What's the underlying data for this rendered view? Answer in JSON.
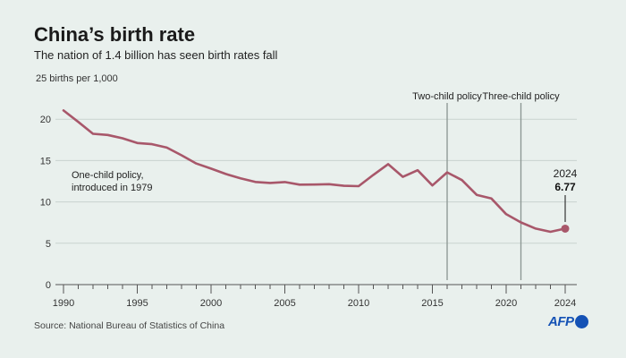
{
  "title": "China’s birth rate",
  "subtitle": "The nation of 1.4 billion has seen birth rates fall",
  "source": "Source: National Bureau of Statistics of China",
  "logo": "AFP",
  "chart_data": {
    "type": "line",
    "ylabel": "25 births per 1,000",
    "ylim": [
      0,
      25
    ],
    "yticks": [
      "0",
      "5",
      "10",
      "15",
      "20"
    ],
    "xlim": [
      1990,
      2024
    ],
    "xticks": [
      "1990",
      "1995",
      "2000",
      "2005",
      "2010",
      "2015",
      "2020",
      "2024"
    ],
    "grid": true,
    "line_color": "#a8576a",
    "x": [
      1990,
      1991,
      1992,
      1993,
      1994,
      1995,
      1996,
      1997,
      1998,
      1999,
      2000,
      2001,
      2002,
      2003,
      2004,
      2005,
      2006,
      2007,
      2008,
      2009,
      2010,
      2011,
      2012,
      2013,
      2014,
      2015,
      2016,
      2017,
      2018,
      2019,
      2020,
      2021,
      2022,
      2023,
      2024
    ],
    "values": [
      21.06,
      19.68,
      18.24,
      18.09,
      17.7,
      17.12,
      16.98,
      16.57,
      15.64,
      14.64,
      14.03,
      13.38,
      12.86,
      12.41,
      12.29,
      12.4,
      12.09,
      12.1,
      12.14,
      11.95,
      11.9,
      13.27,
      14.57,
      13.03,
      13.83,
      11.99,
      13.57,
      12.64,
      10.86,
      10.41,
      8.52,
      7.52,
      6.77,
      6.39,
      6.77
    ],
    "annotations": [
      {
        "text": "One-child policy,",
        "text2": "introduced in 1979"
      },
      {
        "text": "Two-child policy",
        "x": 2016
      },
      {
        "text": "Three-child policy",
        "x": 2021
      },
      {
        "text": "2024",
        "value": "6.77"
      }
    ]
  }
}
